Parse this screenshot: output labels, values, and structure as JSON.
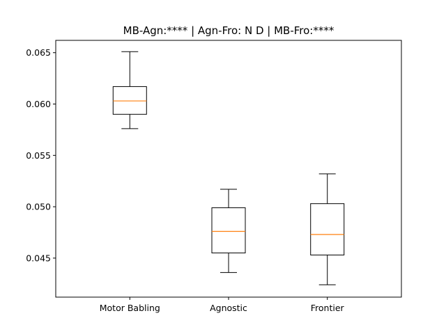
{
  "chart_data": {
    "type": "box",
    "title": "MB-Agn:**** | Agn-Fro: N D | MB-Fro:****",
    "xlabel": "",
    "ylabel": "",
    "categories": [
      "Motor Babling",
      "Agnostic",
      "Frontier"
    ],
    "boxes": [
      {
        "name": "Motor Babling",
        "whisker_low": 0.0576,
        "q1": 0.059,
        "median": 0.0603,
        "q3": 0.0617,
        "whisker_high": 0.0651
      },
      {
        "name": "Agnostic",
        "whisker_low": 0.0436,
        "q1": 0.0455,
        "median": 0.0476,
        "q3": 0.0499,
        "whisker_high": 0.0517
      },
      {
        "name": "Frontier",
        "whisker_low": 0.0424,
        "q1": 0.0453,
        "median": 0.0473,
        "q3": 0.0503,
        "whisker_high": 0.0532
      }
    ],
    "yticks": [
      "0.045",
      "0.050",
      "0.055",
      "0.060",
      "0.065"
    ],
    "ylim": [
      0.0412,
      0.0662
    ],
    "grid": false,
    "colors": {
      "box": "#000000",
      "median": "#ff7f0e"
    }
  }
}
